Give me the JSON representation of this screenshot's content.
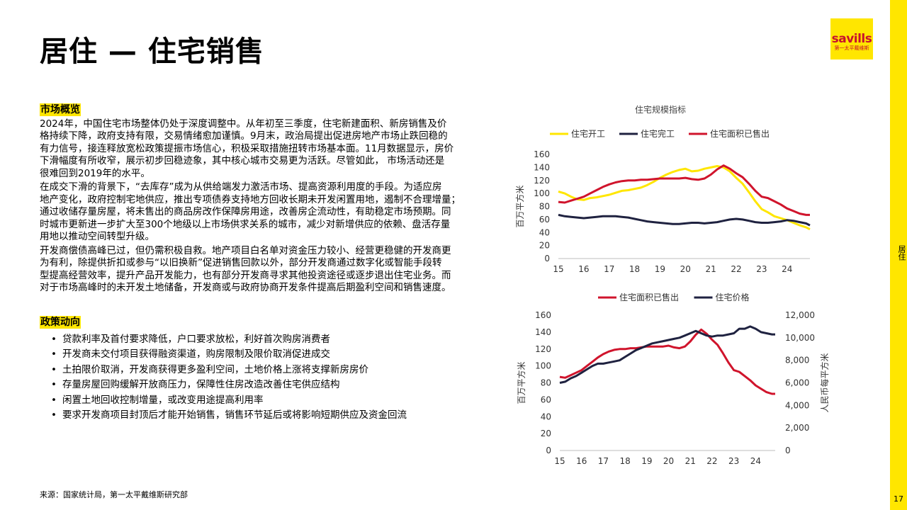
{
  "page": {
    "title": "居住 — 住宅销售",
    "side_label": "居住",
    "page_number": "17",
    "source": "来源：国家统计局，第一太平戴维斯研究部"
  },
  "logo": {
    "word": "savills",
    "sub": "第一太平戴维斯",
    "color": "#c8102e",
    "background": "#ffe600"
  },
  "market": {
    "heading": "市场概览",
    "paragraphs": [
      "2024年，中国住宅市场整体仍处于深度调整中。从年初至三季度，住宅新建面积、新房销售及价\n格持续下降，政府支持有限，交易情绪愈加谨慎。9月末，政治局提出促进房地产市场止跌回稳的\n有力信号，接连释放宽松政策提振市场信心，积极采取措施扭转市场基本面。11月数据显示，房价\n下滑幅度有所收窄，展示初步回稳迹象，其中核心城市交易更为活跃。尽管如此， 市场活动还是\n很难回到2019年的水平。",
      "在成交下滑的背景下，“去库存”成为从供给端发力激活市场、提高资源利用度的手段。为适应房\n地产变化，政府控制宅地供应，推出专项债券支持地方回收长期未开发闲置用地，遏制不合理增量；\n通过收储存量房屋，将未售出的商品房改作保障房用途，改善房企流动性，有助稳定市场预期。同\n时城市更新进一步扩大至300个地级以上市场供求关系的城市，减少对新增供应的依赖、盘活存量\n用地以推动空间转型升级。",
      "开发商偿债高峰已过，但仍需积极自救。地产项目白名单对资金压力较小、经营更稳健的开发商更\n为有利，除提供折扣或参与“以旧换新”促进销售回款以外，部分开发商通过数字化或智能手段转\n型提高经营效率，提升产品开发能力，也有部分开发商寻求其他投资途径或逐步退出住宅业务。而\n对于市场高峰时的未开发土地储备，开发商或与政府协商开发条件提高后期盈利空间和销售速度。"
    ]
  },
  "policy": {
    "heading": "政策动向",
    "bullet_symbol": "•",
    "items": [
      "贷款利率及首付要求降低，户口要求放松，利好首次购房消费者",
      "开发商未交付项目获得融资渠道，购房限制及限价取消促进成交",
      "土拍限价取消，开发商获得更多盈利空间，土地价格上涨将支撑新房房价",
      "存量房屋回购缓解开放商压力，保障性住房改造改善住宅供应结构",
      "闲置土地回收控制增量，或改变用途提高利用率",
      "要求开发商项目封顶后才能开始销售，销售环节延后或将影响短期供应及资金回流"
    ]
  },
  "chart_data": [
    {
      "type": "line",
      "title": "住宅规模指标",
      "ylabel": "百万平方米",
      "xlabel": "",
      "ylim": [
        0,
        160
      ],
      "yticks": [
        0,
        20,
        40,
        60,
        80,
        100,
        120,
        140,
        160
      ],
      "xlim": [
        15,
        24.9
      ],
      "xticks": [
        15,
        16,
        17,
        18,
        19,
        20,
        21,
        22,
        23,
        24
      ],
      "legend_position": "top",
      "grid": false,
      "series": [
        {
          "name": "住宅开工",
          "color": "#ffe600",
          "x": [
            15,
            15.25,
            15.5,
            15.75,
            16,
            16.25,
            16.5,
            16.75,
            17,
            17.25,
            17.5,
            17.75,
            18,
            18.25,
            18.5,
            18.75,
            19,
            19.25,
            19.5,
            19.75,
            20,
            20.25,
            20.5,
            20.75,
            21,
            21.25,
            21.5,
            21.75,
            22,
            22.25,
            22.5,
            22.75,
            23,
            23.25,
            23.5,
            23.75,
            24,
            24.25,
            24.5,
            24.75,
            24.9
          ],
          "values": [
            103,
            100,
            95,
            91,
            90,
            93,
            94,
            96,
            98,
            101,
            104,
            105,
            107,
            109,
            113,
            118,
            124,
            129,
            133,
            136,
            138,
            134,
            135,
            138,
            140,
            142,
            140,
            134,
            124,
            115,
            102,
            88,
            76,
            71,
            65,
            62,
            59,
            55,
            51,
            48,
            45
          ]
        },
        {
          "name": "住宅完工",
          "color": "#1f2240",
          "x": [
            15,
            15.25,
            15.5,
            15.75,
            16,
            16.25,
            16.5,
            16.75,
            17,
            17.25,
            17.5,
            17.75,
            18,
            18.25,
            18.5,
            18.75,
            19,
            19.25,
            19.5,
            19.75,
            20,
            20.25,
            20.5,
            20.75,
            21,
            21.25,
            21.5,
            21.75,
            22,
            22.25,
            22.5,
            22.75,
            23,
            23.25,
            23.5,
            23.75,
            24,
            24.25,
            24.5,
            24.75,
            24.9
          ],
          "values": [
            67,
            65,
            64,
            63,
            62,
            63,
            64,
            65,
            65,
            65,
            64,
            63,
            61,
            59,
            57,
            56,
            55,
            54,
            53,
            53,
            54,
            55,
            55,
            54,
            55,
            56,
            58,
            60,
            61,
            60,
            58,
            56,
            55,
            55,
            56,
            57,
            59,
            58,
            56,
            54,
            51
          ]
        },
        {
          "name": "住宅面积已售出",
          "color": "#d0142c",
          "x": [
            15,
            15.25,
            15.5,
            15.75,
            16,
            16.25,
            16.5,
            16.75,
            17,
            17.25,
            17.5,
            17.75,
            18,
            18.25,
            18.5,
            18.75,
            19,
            19.25,
            19.5,
            19.75,
            20,
            20.25,
            20.5,
            20.75,
            21,
            21.25,
            21.5,
            21.75,
            22,
            22.25,
            22.5,
            22.75,
            23,
            23.25,
            23.5,
            23.75,
            24,
            24.25,
            24.5,
            24.75,
            24.9
          ],
          "values": [
            87,
            86,
            89,
            92,
            95,
            100,
            105,
            110,
            114,
            117,
            119,
            120,
            120,
            121,
            121,
            122,
            123,
            123,
            123,
            123,
            124,
            122,
            121,
            123,
            129,
            137,
            143,
            138,
            131,
            125,
            115,
            104,
            95,
            93,
            88,
            83,
            77,
            73,
            69,
            67,
            67
          ]
        }
      ]
    },
    {
      "type": "line",
      "title": "",
      "ylabel": "百万平方米",
      "y2label": "人民币每平方米",
      "xlabel": "",
      "ylim": [
        0,
        160
      ],
      "yticks": [
        0,
        20,
        40,
        60,
        80,
        100,
        120,
        140,
        160
      ],
      "y2lim": [
        0,
        12000
      ],
      "y2ticks": [
        "0",
        "2,000",
        "4,000",
        "6,000",
        "8,000",
        "10,000",
        "12,000"
      ],
      "xlim": [
        15,
        24.9
      ],
      "xticks": [
        15,
        16,
        17,
        18,
        19,
        20,
        21,
        22,
        23,
        24
      ],
      "legend_position": "top",
      "grid": false,
      "series": [
        {
          "name": "住宅面积已售出",
          "axis": "left",
          "color": "#d0142c",
          "x": [
            15,
            15.25,
            15.5,
            15.75,
            16,
            16.25,
            16.5,
            16.75,
            17,
            17.25,
            17.5,
            17.75,
            18,
            18.25,
            18.5,
            18.75,
            19,
            19.25,
            19.5,
            19.75,
            20,
            20.25,
            20.5,
            20.75,
            21,
            21.25,
            21.5,
            21.75,
            22,
            22.25,
            22.5,
            22.75,
            23,
            23.25,
            23.5,
            23.75,
            24,
            24.25,
            24.5,
            24.75,
            24.9
          ],
          "values": [
            87,
            86,
            89,
            92,
            95,
            100,
            105,
            110,
            114,
            117,
            119,
            120,
            120,
            121,
            121,
            122,
            123,
            123,
            123,
            123,
            124,
            122,
            121,
            123,
            129,
            137,
            143,
            138,
            131,
            125,
            115,
            104,
            95,
            93,
            88,
            83,
            77,
            73,
            69,
            67,
            67
          ]
        },
        {
          "name": "住宅价格",
          "axis": "right",
          "color": "#1f2240",
          "x": [
            15,
            15.25,
            15.5,
            15.75,
            16,
            16.25,
            16.5,
            16.75,
            17,
            17.25,
            17.5,
            17.75,
            18,
            18.25,
            18.5,
            18.75,
            19,
            19.25,
            19.5,
            19.75,
            20,
            20.25,
            20.5,
            20.75,
            21,
            21.25,
            21.5,
            21.75,
            22,
            22.25,
            22.5,
            22.75,
            23,
            23.25,
            23.5,
            23.75,
            24,
            24.25,
            24.5,
            24.75,
            24.9
          ],
          "values": [
            6000,
            6100,
            6400,
            6600,
            6900,
            7200,
            7500,
            7700,
            7700,
            7800,
            7900,
            8000,
            8300,
            8600,
            8900,
            9100,
            9300,
            9500,
            9600,
            9700,
            9800,
            9900,
            10000,
            10200,
            10400,
            10600,
            10400,
            10200,
            10100,
            10200,
            10200,
            10300,
            10400,
            10800,
            10800,
            11000,
            10800,
            10500,
            10400,
            10300,
            10300
          ]
        }
      ]
    }
  ]
}
